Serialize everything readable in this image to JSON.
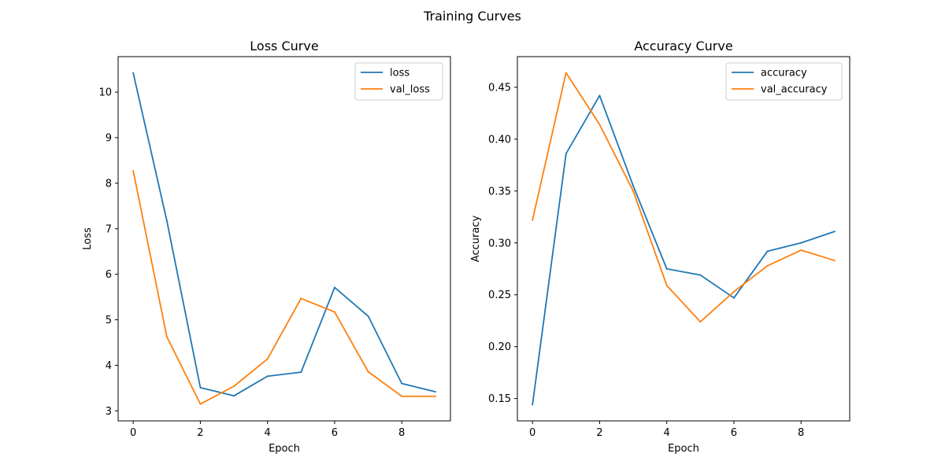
{
  "figure": {
    "suptitle": "Training Curves"
  },
  "chart_data": [
    {
      "type": "line",
      "title": "Loss Curve",
      "xlabel": "Epoch",
      "ylabel": "Loss",
      "xlim": [
        -0.45,
        9.45
      ],
      "ylim": [
        2.78,
        10.78
      ],
      "xticks": [
        0,
        2,
        4,
        6,
        8
      ],
      "yticks": [
        3,
        4,
        5,
        6,
        7,
        8,
        9,
        10
      ],
      "legend_position": "top-right",
      "grid": false,
      "x": [
        0,
        1,
        2,
        3,
        4,
        5,
        6,
        7,
        8,
        9
      ],
      "series": [
        {
          "name": "loss",
          "color": "#1f77b4",
          "values": [
            10.42,
            7.18,
            3.51,
            3.33,
            3.76,
            3.85,
            5.71,
            5.08,
            3.6,
            3.42
          ]
        },
        {
          "name": "val_loss",
          "color": "#ff7f0e",
          "values": [
            8.27,
            4.63,
            3.15,
            3.54,
            4.14,
            5.47,
            5.17,
            3.86,
            3.32,
            3.32
          ]
        }
      ]
    },
    {
      "type": "line",
      "title": "Accuracy Curve",
      "xlabel": "Epoch",
      "ylabel": "Accuracy",
      "xlim": [
        -0.45,
        9.45
      ],
      "ylim": [
        0.1285,
        0.4795
      ],
      "xticks": [
        0,
        2,
        4,
        6,
        8
      ],
      "yticks": [
        0.15,
        0.2,
        0.25,
        0.3,
        0.35,
        0.4,
        0.45
      ],
      "ytick_labels": [
        "0.15",
        "0.20",
        "0.25",
        "0.30",
        "0.35",
        "0.40",
        "0.45"
      ],
      "legend_position": "top-right",
      "grid": false,
      "x": [
        0,
        1,
        2,
        3,
        4,
        5,
        6,
        7,
        8,
        9
      ],
      "series": [
        {
          "name": "accuracy",
          "color": "#1f77b4",
          "values": [
            0.144,
            0.386,
            0.442,
            0.355,
            0.275,
            0.269,
            0.247,
            0.292,
            0.3,
            0.311
          ]
        },
        {
          "name": "val_accuracy",
          "color": "#ff7f0e",
          "values": [
            0.322,
            0.464,
            0.414,
            0.35,
            0.259,
            0.224,
            0.253,
            0.278,
            0.293,
            0.283
          ]
        }
      ]
    }
  ]
}
